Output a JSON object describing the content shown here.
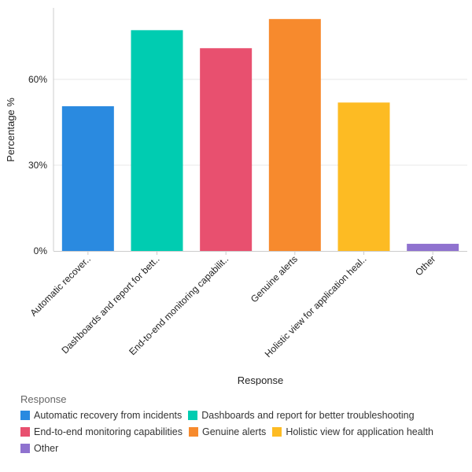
{
  "chart_data": {
    "type": "bar",
    "categories": [
      "Automatic recovery from incidents",
      "Dashboards and report for better troubleshooting",
      "End-to-end monitoring capabilities",
      "Genuine alerts",
      "Holistic view for application health",
      "Other"
    ],
    "tick_labels": [
      "Automatic recover..",
      "Dashboards and report for bett..",
      "End-to-end monitoring capabilit..",
      "Genuine alerts",
      "Holistic view for application heal..",
      "Other"
    ],
    "values": [
      50.6,
      77.2,
      70.9,
      81.1,
      51.9,
      2.5
    ],
    "colors": [
      "#2a8ae0",
      "#00ccb1",
      "#e8506f",
      "#f78a2d",
      "#fdbb23",
      "#8f72cf"
    ],
    "xlabel": "Response",
    "ylabel": "Percentage %",
    "ylim": [
      0,
      85
    ],
    "yticks": [
      0,
      30,
      60
    ],
    "ytick_labels": [
      "0%",
      "30%",
      "60%"
    ],
    "grid": true,
    "legend_title": "Response",
    "legend_placement": "bottom"
  }
}
